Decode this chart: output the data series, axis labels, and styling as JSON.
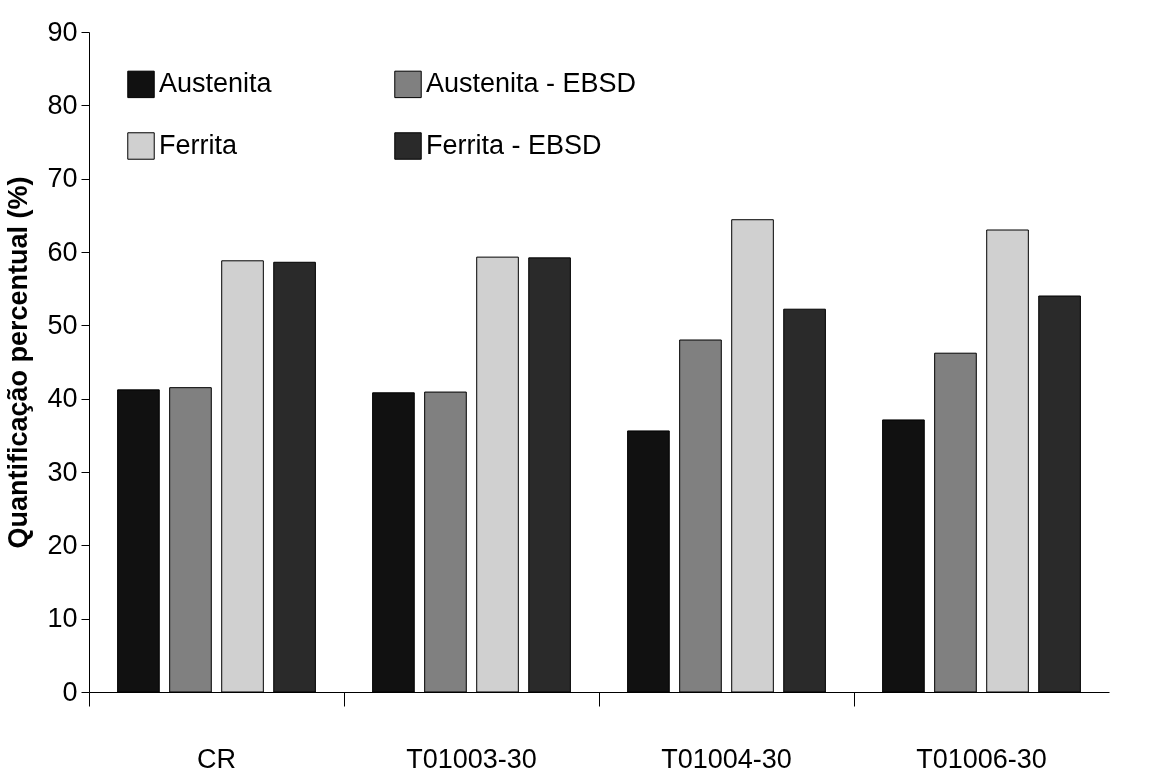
{
  "chart_data": {
    "type": "bar",
    "ylabel": "Quantificação percentual (%)",
    "categories": [
      "CR",
      "T01003-30",
      "T01004-30",
      "T01006-30"
    ],
    "series": [
      {
        "name": "Austenita",
        "color": "#111111",
        "values": [
          41.2,
          40.8,
          35.6,
          37.1
        ]
      },
      {
        "name": "Austenita - EBSD",
        "color": "#808080",
        "values": [
          41.5,
          40.9,
          48.0,
          46.2
        ]
      },
      {
        "name": "Ferrita",
        "color": "#d0d0d0",
        "values": [
          58.8,
          59.3,
          64.4,
          63.0
        ]
      },
      {
        "name": "Ferrita - EBSD",
        "color": "#2a2a2a",
        "values": [
          58.6,
          59.2,
          52.2,
          54.0
        ]
      }
    ],
    "ylim": [
      0,
      90
    ],
    "yticks": [
      0,
      10,
      20,
      30,
      40,
      50,
      60,
      70,
      80,
      90
    ],
    "grid": false,
    "legend": "top"
  }
}
